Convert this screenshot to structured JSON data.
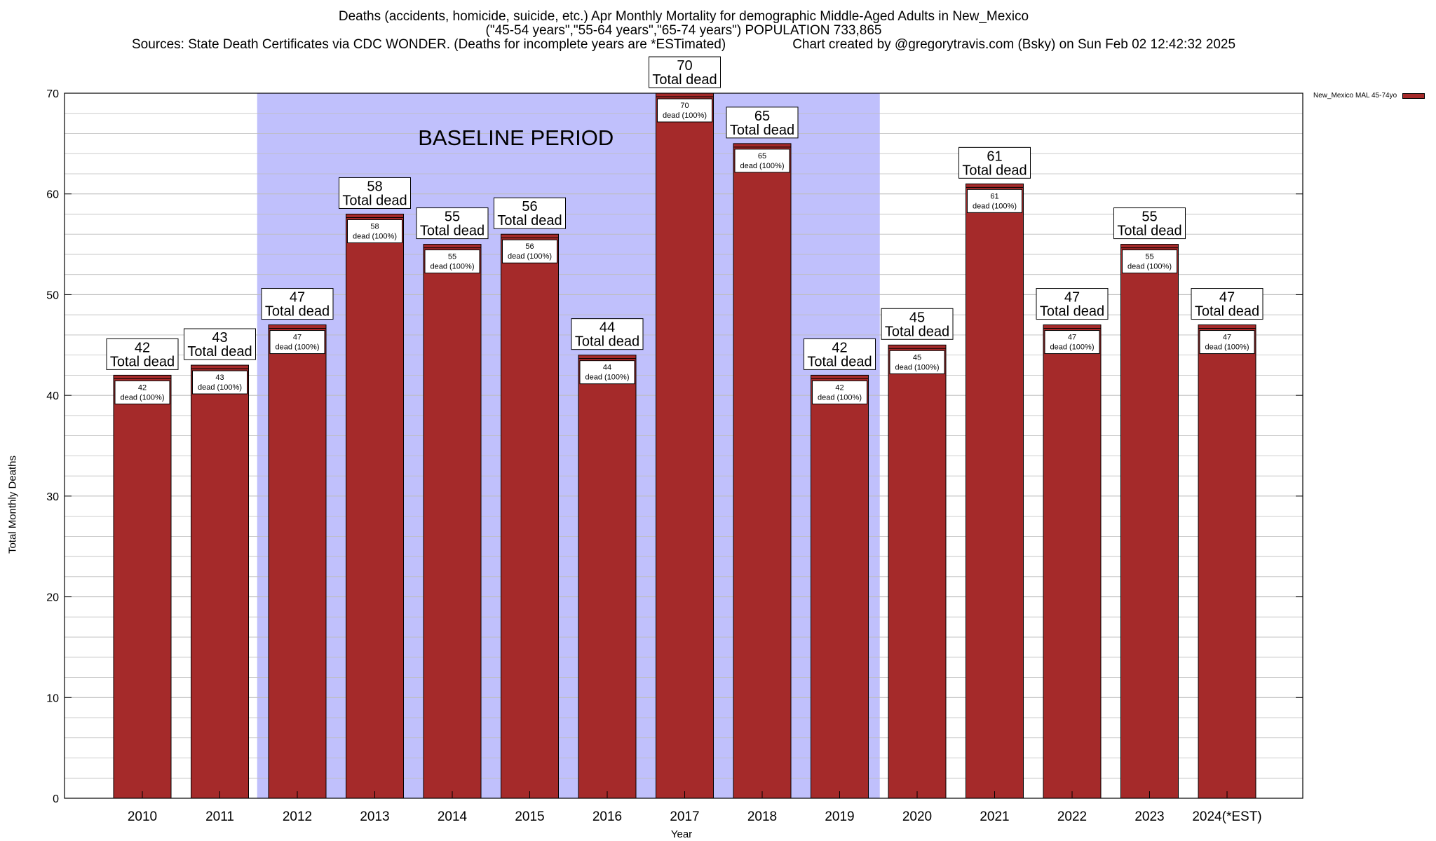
{
  "header": {
    "title": "Deaths (accidents, homicide, suicide, etc.) Apr Monthly Mortality for demographic Middle-Aged Adults in New_Mexico",
    "subtitle": "(\"45-54 years\",\"55-64 years\",\"65-74 years\") POPULATION 733,865",
    "sources": "Sources: State Death Certificates via CDC WONDER. (Deaths for incomplete years are *ESTimated)",
    "credit": "Chart created by @gregorytravis.com (Bsky) on Sun Feb 02 12:42:32 2025"
  },
  "legend": {
    "label": "New_Mexico MAL 45-74yo"
  },
  "colors": {
    "bar": "#a52a2a",
    "baseline_band": "#c0c0fc",
    "grid": "#bdbdbd"
  },
  "chart_data": {
    "type": "bar",
    "title": "Deaths (accidents, homicide, suicide, etc.) Apr Monthly Mortality for demographic Middle-Aged Adults in New_Mexico",
    "xlabel": "Year",
    "ylabel": "Total Monthly Deaths",
    "ylim": [
      0,
      70
    ],
    "yticks": [
      0,
      10,
      20,
      30,
      40,
      50,
      60,
      70
    ],
    "grid": true,
    "legend_position": "top-right",
    "categories": [
      "2010",
      "2011",
      "2012",
      "2013",
      "2014",
      "2015",
      "2016",
      "2017",
      "2018",
      "2019",
      "2020",
      "2021",
      "2022",
      "2023",
      "2024(*EST)"
    ],
    "series": [
      {
        "name": "New_Mexico MAL 45-74yo",
        "values": [
          42,
          43,
          47,
          58,
          55,
          56,
          44,
          70,
          65,
          42,
          45,
          61,
          47,
          55,
          47
        ]
      }
    ],
    "top_label_suffix": "Total dead",
    "inner_label_suffix": "dead (100%)",
    "baseline_period": {
      "label": "BASELINE PERIOD",
      "start": "2012",
      "end": "2019"
    }
  }
}
